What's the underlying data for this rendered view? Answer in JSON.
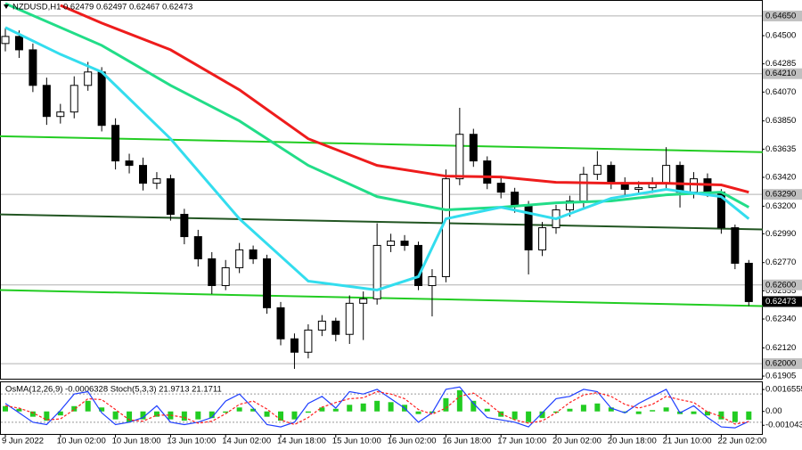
{
  "chart_data": [
    {
      "type": "candlestick",
      "title": "NZDUSD,H1  0.62479 0.62497 0.62467 0.62473",
      "categories": [
        "9 Jun 2022",
        null,
        null,
        null,
        "10 Jun 02:00",
        null,
        null,
        null,
        "10 Jun 18:00",
        null,
        null,
        null,
        "13 Jun 10:00",
        null,
        null,
        null,
        "14 Jun 02:00",
        null,
        null,
        null,
        "14 Jun 18:00",
        null,
        null,
        null,
        "15 Jun 10:00",
        null,
        null,
        null,
        "16 Jun 02:00",
        null,
        null,
        null,
        "16 Jun 18:00",
        null,
        null,
        null,
        "17 Jun 10:00",
        null,
        null,
        null,
        "20 Jun 02:00",
        null,
        null,
        null,
        "20 Jun 18:00",
        null,
        null,
        null,
        "21 Jun 10:00",
        null,
        null,
        null,
        "22 Jun 02:00",
        null,
        null
      ],
      "open": [
        0.6444,
        0.64494,
        0.64392,
        0.64121,
        0.63884,
        0.63918,
        0.64121,
        0.64223,
        0.63816,
        0.63545,
        0.63511,
        0.63375,
        0.63409,
        0.63138,
        0.62968,
        0.62799,
        0.62595,
        0.62731,
        0.62867,
        0.62799,
        0.62426,
        0.62189,
        0.62087,
        0.62256,
        0.62324,
        0.62223,
        0.6246,
        0.62494,
        0.62901,
        0.62934,
        0.62901,
        0.62595,
        0.62663,
        0.63409,
        0.63748,
        0.63545,
        0.63375,
        0.63307,
        0.63206,
        0.62867,
        0.63036,
        0.63172,
        0.6324,
        0.63443,
        0.63511,
        0.63375,
        0.63328,
        0.63341,
        0.63375,
        0.63511,
        0.63307,
        0.63409,
        0.63307,
        0.63036,
        0.62765
      ],
      "high": [
        0.6456,
        0.6454,
        0.6444,
        0.6418,
        0.6398,
        0.6419,
        0.643,
        0.6426,
        0.6387,
        0.636,
        0.6357,
        0.6346,
        0.6344,
        0.6318,
        0.6302,
        0.6285,
        0.6279,
        0.6292,
        0.629,
        0.6283,
        0.6247,
        0.6223,
        0.623,
        0.6237,
        0.6235,
        0.6252,
        0.6255,
        0.6307,
        0.6299,
        0.6298,
        0.6293,
        0.6272,
        0.6348,
        0.6395,
        0.6379,
        0.6358,
        0.6342,
        0.6334,
        0.6324,
        0.6308,
        0.6321,
        0.6328,
        0.635,
        0.6362,
        0.6354,
        0.6342,
        0.6339,
        0.6342,
        0.6365,
        0.6354,
        0.6346,
        0.6345,
        0.6333,
        0.6306,
        0.6279
      ],
      "low": [
        0.6438,
        0.6433,
        0.6407,
        0.6382,
        0.6383,
        0.6387,
        0.6408,
        0.6377,
        0.6348,
        0.6345,
        0.6332,
        0.6333,
        0.6309,
        0.6291,
        0.6274,
        0.6253,
        0.6256,
        0.6269,
        0.6276,
        0.6238,
        0.6214,
        0.6196,
        0.6204,
        0.6221,
        0.6217,
        0.6215,
        0.6218,
        0.6245,
        0.6285,
        0.6286,
        0.6256,
        0.6236,
        0.6262,
        0.6336,
        0.635,
        0.6333,
        0.6326,
        0.6315,
        0.6268,
        0.6282,
        0.6299,
        0.6312,
        0.6319,
        0.634,
        0.6333,
        0.6328,
        0.6329,
        0.633,
        0.6333,
        0.6319,
        0.6326,
        0.6327,
        0.6299,
        0.6272,
        0.6244
      ],
      "close": [
        0.64494,
        0.64392,
        0.64121,
        0.63884,
        0.63918,
        0.64121,
        0.64223,
        0.63816,
        0.63545,
        0.63511,
        0.63375,
        0.63409,
        0.63138,
        0.62968,
        0.62799,
        0.62595,
        0.62731,
        0.62867,
        0.62799,
        0.62426,
        0.62189,
        0.62087,
        0.62256,
        0.62324,
        0.62223,
        0.6246,
        0.62494,
        0.62901,
        0.62934,
        0.62901,
        0.62595,
        0.62663,
        0.63409,
        0.63748,
        0.63545,
        0.63375,
        0.63307,
        0.63206,
        0.62867,
        0.63036,
        0.63172,
        0.6324,
        0.63443,
        0.63511,
        0.63375,
        0.63328,
        0.63341,
        0.63375,
        0.63511,
        0.63307,
        0.63409,
        0.63307,
        0.63036,
        0.62765,
        0.62473
      ],
      "ylim": [
        0.61885,
        0.64765
      ],
      "yticks": [
        {
          "value": 0.645,
          "label": "0.64500"
        },
        {
          "value": 0.64285,
          "label": "0.64285"
        },
        {
          "value": 0.6407,
          "label": "0.64070"
        },
        {
          "value": 0.6385,
          "label": "0.63850"
        },
        {
          "value": 0.63635,
          "label": "0.63635"
        },
        {
          "value": 0.6342,
          "label": "0.63420"
        },
        {
          "value": 0.632,
          "label": "0.63200"
        },
        {
          "value": 0.6299,
          "label": "0.62990"
        },
        {
          "value": 0.6277,
          "label": "0.62770"
        },
        {
          "value": 0.62555,
          "label": "0.62555"
        },
        {
          "value": 0.6234,
          "label": "0.62340"
        },
        {
          "value": 0.6212,
          "label": "0.62120"
        },
        {
          "value": 0.61905,
          "label": "0.61905"
        }
      ],
      "levels": [
        {
          "value": 0.6465,
          "label": "0.64650"
        },
        {
          "value": 0.6421,
          "label": "0.64210"
        },
        {
          "value": 0.6329,
          "label": "0.63290"
        },
        {
          "value": 0.626,
          "label": "0.62600"
        },
        {
          "value": 0.62,
          "label": "0.62000"
        }
      ],
      "last_price": {
        "value": 0.62473,
        "label": "0.62473"
      },
      "series": [
        {
          "color": "#ee1c1c",
          "x": [
            4,
            7,
            12,
            17,
            22,
            27,
            32,
            36,
            40,
            44,
            48,
            52,
            54
          ],
          "values": [
            0.64731,
            0.64596,
            0.64392,
            0.64087,
            0.63714,
            0.63511,
            0.63429,
            0.63423,
            0.63382,
            0.63375,
            0.63375,
            0.63362,
            0.63307
          ]
        },
        {
          "color": "#22dd88",
          "x": [
            0,
            7,
            12,
            17,
            22,
            27,
            32,
            36,
            40,
            44,
            48,
            52,
            54
          ],
          "values": [
            0.64745,
            0.64426,
            0.64121,
            0.6385,
            0.63511,
            0.63273,
            0.63172,
            0.63192,
            0.63226,
            0.6324,
            0.63287,
            0.63307,
            0.63192
          ]
        },
        {
          "color": "#33ddee",
          "x": [
            0,
            4,
            7,
            12,
            17,
            22,
            27,
            30,
            32,
            36,
            40,
            44,
            48,
            52,
            54
          ],
          "values": [
            0.64562,
            0.64358,
            0.64223,
            0.63714,
            0.63104,
            0.62629,
            0.62561,
            0.62663,
            0.63104,
            0.63192,
            0.63104,
            0.6326,
            0.63328,
            0.63273,
            0.63104
          ]
        }
      ],
      "trendlines": [
        {
          "color": "#22cc22",
          "x": [
            -0.5,
            55
          ],
          "values": [
            0.63734,
            0.63612
          ]
        },
        {
          "color": "#225522",
          "x": [
            -0.5,
            55
          ],
          "values": [
            0.63138,
            0.63023
          ]
        },
        {
          "color": "#22cc22",
          "x": [
            -0.5,
            55
          ],
          "values": [
            0.62561,
            0.62439
          ]
        }
      ]
    },
    {
      "type": "oscillator",
      "title": "OsMA(12,26,9) -0.0006328  Stoch(5,3,3) 21.9713 21.1711",
      "color": "#22cc22",
      "values": [
        0.0004,
        0.0002,
        -0.0004,
        -0.0007,
        -0.0003,
        0.0004,
        0.0008,
        0.0003,
        -0.0006,
        -0.0008,
        -0.0006,
        -0.0004,
        -0.0006,
        -0.0007,
        -0.0006,
        -0.0005,
        -0.0001,
        0.0003,
        0.0002,
        -0.0004,
        -0.0007,
        -0.0006,
        -0.0001,
        0.0003,
        0.0002,
        0.0005,
        0.0006,
        0.0008,
        0.0007,
        0.0005,
        -0.0002,
        -0.0001,
        0.001,
        0.0016,
        0.0008,
        0.0002,
        -0.0004,
        -0.0006,
        -0.0008,
        -0.0005,
        -0.0001,
        0.0002,
        0.0005,
        0.0006,
        0.0003,
        -0.0001,
        -0.0002,
        0.0001,
        0.0003,
        -0.0002,
        -0.0002,
        -0.0003,
        -0.0006,
        -0.0008,
        -0.0006328
      ],
      "ylim": [
        -0.0017,
        0.0022
      ],
      "yticks": [
        {
          "value": 0.0016555,
          "label": "0.0016555"
        },
        {
          "value": 0,
          "label": "0.00"
        },
        {
          "value": -0.001043,
          "label": "-0.001043"
        }
      ],
      "y2lim": [
        -5,
        105
      ],
      "y2levels": [
        80,
        20
      ],
      "series": [
        {
          "color": "#1f3fff",
          "axis": "y2",
          "values": [
            60,
            40,
            20,
            15,
            45,
            80,
            85,
            40,
            15,
            20,
            30,
            55,
            20,
            15,
            20,
            30,
            65,
            80,
            50,
            15,
            10,
            20,
            60,
            75,
            50,
            85,
            80,
            90,
            70,
            50,
            20,
            40,
            90,
            95,
            60,
            30,
            25,
            20,
            10,
            40,
            70,
            75,
            90,
            85,
            50,
            40,
            60,
            75,
            90,
            40,
            55,
            30,
            10,
            8,
            21.9713
          ]
        },
        {
          "color": "#ff2020",
          "axis": "y2",
          "dash": true,
          "values": [
            55,
            50,
            40,
            25,
            27,
            47,
            70,
            68,
            47,
            25,
            22,
            35,
            35,
            30,
            18,
            22,
            38,
            58,
            65,
            48,
            25,
            15,
            30,
            52,
            62,
            70,
            72,
            85,
            80,
            70,
            47,
            37,
            50,
            75,
            82,
            62,
            38,
            25,
            18,
            23,
            40,
            62,
            78,
            83,
            75,
            58,
            50,
            58,
            75,
            68,
            62,
            42,
            32,
            16,
            21.1711
          ]
        }
      ]
    }
  ]
}
